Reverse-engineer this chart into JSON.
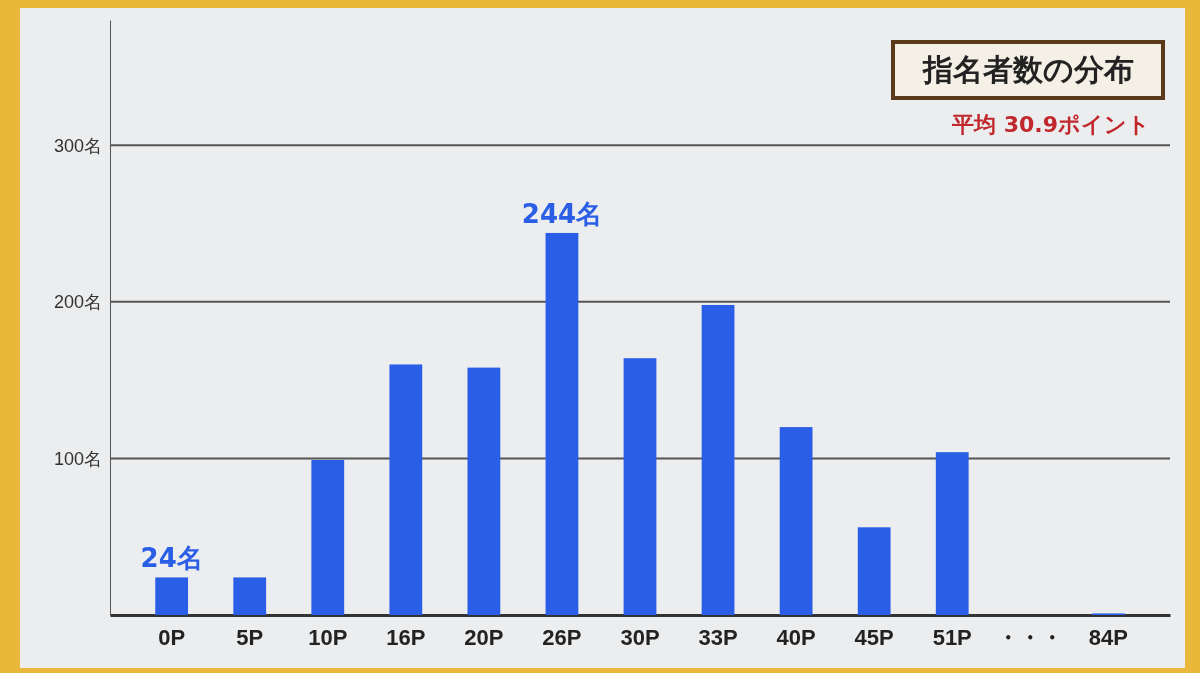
{
  "chart_data": {
    "type": "bar",
    "title": "指名者数の分布",
    "annotations": [
      "平均 30.9ポイント"
    ],
    "categories": [
      "0P",
      "5P",
      "10P",
      "16P",
      "20P",
      "26P",
      "30P",
      "33P",
      "40P",
      "45P",
      "51P",
      "・・・",
      "84P"
    ],
    "values": [
      24,
      24,
      99,
      160,
      158,
      244,
      164,
      198,
      120,
      56,
      104,
      null,
      1
    ],
    "value_labels": [
      "24名",
      null,
      null,
      null,
      null,
      "244名",
      null,
      null,
      null,
      null,
      null,
      null,
      null
    ],
    "color": "#2a5ee6",
    "ylim": [
      0,
      380
    ],
    "yticks": [
      {
        "value": 100,
        "label": "100名"
      },
      {
        "value": 200,
        "label": "200名"
      },
      {
        "value": 300,
        "label": "300名"
      }
    ],
    "grid": "y"
  }
}
